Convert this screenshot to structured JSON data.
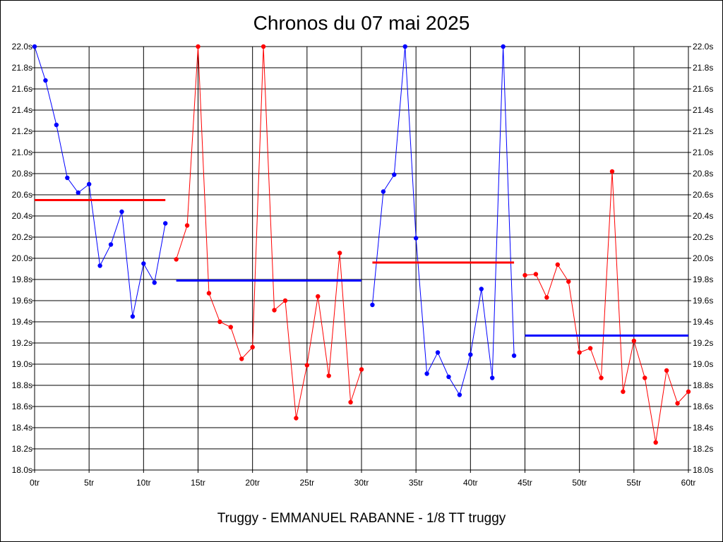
{
  "chart_data": {
    "type": "line",
    "title": "Chronos du 07 mai 2025",
    "subtitle": "Truggy - EMMANUEL RABANNE - 1/8 TT truggy",
    "xlim": [
      0,
      60
    ],
    "ylim": [
      18.0,
      22.0
    ],
    "x_ticks": [
      0,
      5,
      10,
      15,
      20,
      25,
      30,
      35,
      40,
      45,
      50,
      55,
      60
    ],
    "x_tick_labels": [
      "0tr",
      "5tr",
      "10tr",
      "15tr",
      "20tr",
      "25tr",
      "30tr",
      "35tr",
      "40tr",
      "45tr",
      "50tr",
      "55tr",
      "60tr"
    ],
    "y_ticks": [
      18.0,
      18.2,
      18.4,
      18.6,
      18.8,
      19.0,
      19.2,
      19.4,
      19.6,
      19.8,
      20.0,
      20.2,
      20.4,
      20.6,
      20.8,
      21.0,
      21.2,
      21.4,
      21.6,
      21.8,
      22.0
    ],
    "y_tick_labels": [
      "18.0s",
      "18.2s",
      "18.4s",
      "18.6s",
      "18.8s",
      "19.0s",
      "19.2s",
      "19.4s",
      "19.6s",
      "19.8s",
      "20.0s",
      "20.2s",
      "20.4s",
      "20.6s",
      "20.8s",
      "21.0s",
      "21.2s",
      "21.4s",
      "21.6s",
      "21.8s",
      "22.0s"
    ],
    "grid": true,
    "series": [
      {
        "color": "#0000ff",
        "x": [
          0,
          1,
          2,
          3,
          4,
          5,
          6,
          7,
          8,
          9,
          10,
          11,
          12
        ],
        "values": [
          22.0,
          21.68,
          21.26,
          20.76,
          20.62,
          20.7,
          19.93,
          20.13,
          20.44,
          19.45,
          19.95,
          19.77,
          20.33
        ],
        "avg": 20.55,
        "avg_color": "#ff0000",
        "avg_x": [
          0,
          12
        ]
      },
      {
        "color": "#ff0000",
        "x": [
          13,
          14,
          15,
          16,
          17,
          18,
          19,
          20,
          21,
          22,
          23,
          24,
          25,
          26,
          27,
          28,
          29,
          30
        ],
        "values": [
          19.99,
          20.31,
          22.0,
          19.67,
          19.4,
          19.35,
          19.05,
          19.16,
          22.0,
          19.51,
          19.6,
          18.49,
          18.99,
          19.64,
          18.89,
          20.05,
          18.64,
          18.95
        ],
        "avg": 19.79,
        "avg_color": "#0000ff",
        "avg_x": [
          13,
          30
        ]
      },
      {
        "color": "#0000ff",
        "x": [
          31,
          32,
          33,
          34,
          35,
          36,
          37,
          38,
          39,
          40,
          41,
          42,
          43,
          44
        ],
        "values": [
          19.56,
          20.63,
          20.79,
          22.0,
          20.19,
          18.91,
          19.11,
          18.88,
          18.71,
          19.09,
          19.71,
          18.87,
          22.0,
          19.08
        ],
        "avg": 19.96,
        "avg_color": "#ff0000",
        "avg_x": [
          31,
          44
        ]
      },
      {
        "color": "#ff0000",
        "x": [
          45,
          46,
          47,
          48,
          49,
          50,
          51,
          52,
          53,
          54,
          55,
          56,
          57,
          58,
          59,
          60
        ],
        "values": [
          19.84,
          19.85,
          19.63,
          19.94,
          19.78,
          19.11,
          19.15,
          18.87,
          20.82,
          18.74,
          19.22,
          18.87,
          18.26,
          18.94,
          18.63,
          18.74
        ],
        "avg": 19.27,
        "avg_color": "#0000ff",
        "avg_x": [
          45,
          60
        ]
      }
    ]
  }
}
